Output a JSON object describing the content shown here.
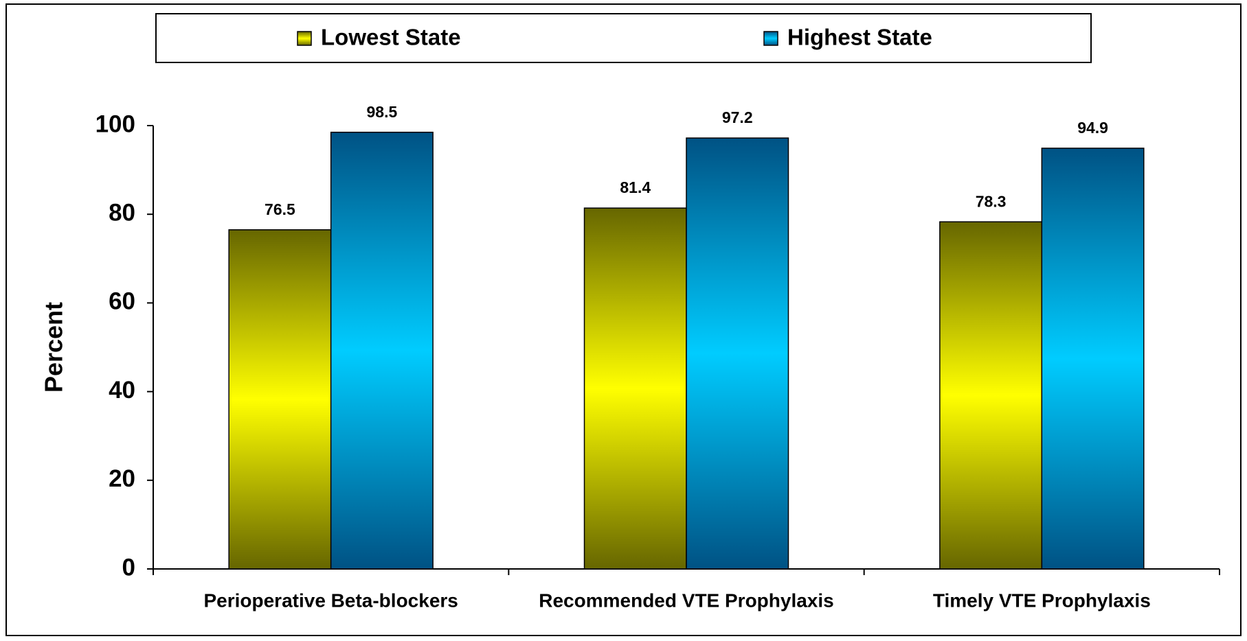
{
  "chart_data": {
    "type": "bar",
    "y_label": "Percent",
    "categories": [
      "Perioperative Beta-blockers",
      "Recommended VTE Prophylaxis",
      "Timely VTE Prophylaxis"
    ],
    "series": [
      {
        "name": "Lowest State",
        "color": "#ffff00",
        "values": [
          76.5,
          81.4,
          78.3
        ]
      },
      {
        "name": "Highest State",
        "color": "#00ccff",
        "values": [
          98.5,
          97.2,
          94.9
        ]
      }
    ],
    "ylim": [
      0,
      100
    ],
    "yticks": [
      0,
      20,
      40,
      60,
      80,
      100
    ],
    "grid": false,
    "legend": "top"
  }
}
